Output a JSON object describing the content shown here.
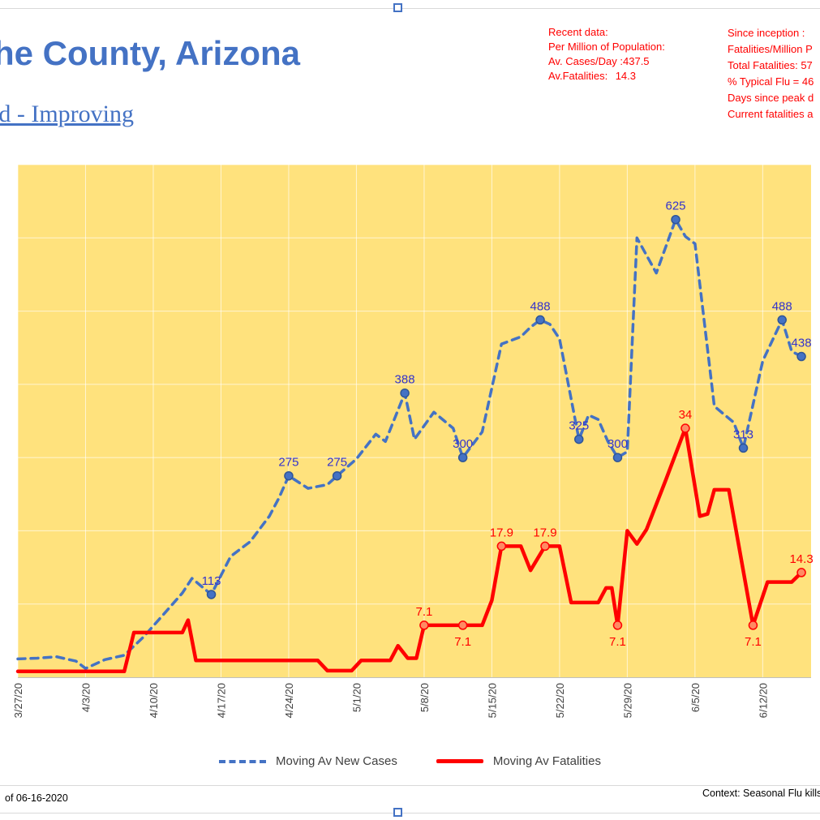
{
  "page": {
    "title": "he County, Arizona",
    "subtitle": "ld - Improving",
    "footer_left": "of 06-16-2020",
    "footer_right": "Context: Seasonal Flu kills"
  },
  "stats_recent": {
    "title": "Recent data:",
    "subtitle": "Per Million of Population:",
    "rows": [
      {
        "label": "Av. Cases/Day :",
        "value": "437.5"
      },
      {
        "label": "Av.Fatalities:",
        "value": "14.3"
      }
    ]
  },
  "stats_inception": {
    "lines": [
      "Since inception :",
      "Fatalities/Million P",
      "Total Fatalities: 57",
      "% Typical Flu = 46",
      "Days since peak d",
      "Current fatalities a"
    ]
  },
  "legend": [
    {
      "label": "Moving Av New Cases",
      "color": "#4472C4",
      "style": "dashed"
    },
    {
      "label": "Moving Av Fatalities",
      "color": "#FF0000",
      "style": "solid"
    }
  ],
  "chart_data": {
    "type": "line",
    "title": "",
    "plot_bg": "#FFE27D",
    "grid_color": "rgba(255,255,255,0.65)",
    "axis_line_color": "#BFBFBF",
    "tick_label_color": "#404040",
    "x_tick_labels": [
      "3/27/20",
      "4/3/20",
      "4/10/20",
      "4/17/20",
      "4/24/20",
      "5/1/20",
      "5/8/20",
      "5/15/20",
      "5/22/20",
      "5/29/20",
      "6/5/20",
      "6/12/20"
    ],
    "x_tick_days": [
      0,
      7,
      14,
      21,
      28,
      35,
      42,
      49,
      56,
      63,
      70,
      77
    ],
    "x_range_days": [
      0,
      82
    ],
    "y_axis_cases": {
      "min": 0,
      "max": 700,
      "grid_step": 100
    },
    "y_axis_fatalities": {
      "min": 0,
      "max": 70
    },
    "series": [
      {
        "name": "Moving Av New Cases",
        "axis": "cases",
        "color": "#4472C4",
        "dash": true,
        "width": 3.5,
        "marker_fill": "#4472C4",
        "marker_stroke": "#2F5597",
        "label_color": "#3333CC",
        "points": [
          [
            0,
            25
          ],
          [
            2,
            26
          ],
          [
            4,
            28
          ],
          [
            6,
            22
          ],
          [
            7,
            12
          ],
          [
            9,
            24
          ],
          [
            11,
            30
          ],
          [
            13,
            55
          ],
          [
            15,
            85
          ],
          [
            17,
            115
          ],
          [
            18,
            135
          ],
          [
            20,
            113
          ],
          [
            22,
            165
          ],
          [
            24,
            185
          ],
          [
            26,
            220
          ],
          [
            27,
            245
          ],
          [
            28,
            275
          ],
          [
            30,
            258
          ],
          [
            32,
            263
          ],
          [
            33,
            275
          ],
          [
            35,
            298
          ],
          [
            37,
            332
          ],
          [
            38,
            322
          ],
          [
            40,
            388
          ],
          [
            41,
            325
          ],
          [
            43,
            362
          ],
          [
            45,
            340
          ],
          [
            46,
            300
          ],
          [
            48,
            335
          ],
          [
            50,
            455
          ],
          [
            52,
            465
          ],
          [
            53,
            478
          ],
          [
            54,
            488
          ],
          [
            55,
            482
          ],
          [
            56,
            462
          ],
          [
            58,
            325
          ],
          [
            59,
            358
          ],
          [
            60,
            352
          ],
          [
            61,
            322
          ],
          [
            62,
            300
          ],
          [
            63,
            308
          ],
          [
            64,
            600
          ],
          [
            66,
            552
          ],
          [
            68,
            625
          ],
          [
            69,
            602
          ],
          [
            70,
            592
          ],
          [
            72,
            370
          ],
          [
            74,
            348
          ],
          [
            75,
            313
          ],
          [
            77,
            432
          ],
          [
            79,
            488
          ],
          [
            80,
            445
          ],
          [
            81,
            438
          ]
        ],
        "labels": [
          {
            "day": 20,
            "value": 113,
            "text": "113",
            "pos": "above"
          },
          {
            "day": 28,
            "value": 275,
            "text": "275",
            "pos": "above"
          },
          {
            "day": 33,
            "value": 275,
            "text": "275",
            "pos": "above"
          },
          {
            "day": 40,
            "value": 388,
            "text": "388",
            "pos": "above"
          },
          {
            "day": 46,
            "value": 300,
            "text": "300",
            "pos": "above"
          },
          {
            "day": 54,
            "value": 488,
            "text": "488",
            "pos": "above"
          },
          {
            "day": 58,
            "value": 325,
            "text": "325",
            "pos": "above"
          },
          {
            "day": 62,
            "value": 300,
            "text": "300",
            "pos": "above"
          },
          {
            "day": 68,
            "value": 625,
            "text": "625",
            "pos": "above"
          },
          {
            "day": 75,
            "value": 313,
            "text": "313",
            "pos": "above"
          },
          {
            "day": 79,
            "value": 488,
            "text": "488",
            "pos": "above"
          },
          {
            "day": 81,
            "value": 438,
            "text": "438",
            "pos": "above"
          }
        ]
      },
      {
        "name": "Moving Av Fatalities",
        "axis": "fatalities",
        "color": "#FF0000",
        "dash": false,
        "width": 4.5,
        "marker_fill": "#FF8A63",
        "marker_stroke": "#FF0000",
        "label_color": "#FF0000",
        "points": [
          [
            0,
            0.8
          ],
          [
            11,
            0.8
          ],
          [
            12,
            6.1
          ],
          [
            17,
            6.1
          ],
          [
            17.6,
            7.8
          ],
          [
            18.4,
            2.3
          ],
          [
            31,
            2.3
          ],
          [
            32,
            0.9
          ],
          [
            34.5,
            0.9
          ],
          [
            35.5,
            2.3
          ],
          [
            38.5,
            2.3
          ],
          [
            39.3,
            4.3
          ],
          [
            40.3,
            2.6
          ],
          [
            41.2,
            2.6
          ],
          [
            42,
            7.1
          ],
          [
            48,
            7.1
          ],
          [
            49,
            10.5
          ],
          [
            50,
            17.9
          ],
          [
            52,
            17.9
          ],
          [
            53,
            14.6
          ],
          [
            54.5,
            17.9
          ],
          [
            56,
            17.9
          ],
          [
            57.2,
            10.2
          ],
          [
            60,
            10.2
          ],
          [
            60.8,
            12.2
          ],
          [
            61.4,
            12.2
          ],
          [
            62,
            7.1
          ],
          [
            63,
            20
          ],
          [
            64,
            18.2
          ],
          [
            65,
            20.2
          ],
          [
            67,
            27
          ],
          [
            69,
            34
          ],
          [
            70.5,
            22
          ],
          [
            71.3,
            22.3
          ],
          [
            72,
            25.6
          ],
          [
            73.5,
            25.6
          ],
          [
            76,
            7.1
          ],
          [
            77.5,
            13
          ],
          [
            80,
            13
          ],
          [
            81,
            14.3
          ]
        ],
        "labels": [
          {
            "day": 42,
            "value": 7.1,
            "text": "7.1",
            "pos": "above"
          },
          {
            "day": 46,
            "value": 7.1,
            "text": "7.1",
            "pos": "below"
          },
          {
            "day": 50,
            "value": 17.9,
            "text": "17.9",
            "pos": "above"
          },
          {
            "day": 54.5,
            "value": 17.9,
            "text": "17.9",
            "pos": "above"
          },
          {
            "day": 62,
            "value": 7.1,
            "text": "7.1",
            "pos": "below"
          },
          {
            "day": 69,
            "value": 34,
            "text": "34",
            "pos": "above"
          },
          {
            "day": 76,
            "value": 7.1,
            "text": "7.1",
            "pos": "below"
          },
          {
            "day": 81,
            "value": 14.3,
            "text": "14.3",
            "pos": "above"
          }
        ]
      }
    ]
  }
}
